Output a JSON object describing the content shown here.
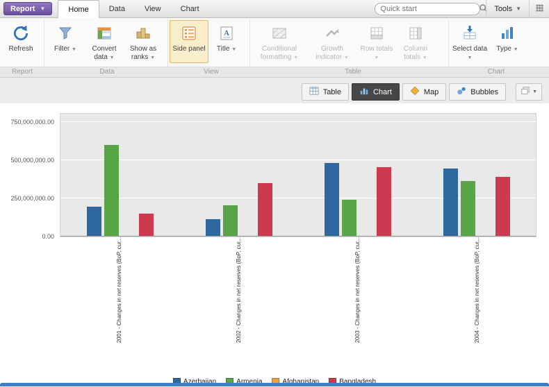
{
  "topbar": {
    "report_button": "Report",
    "tabs": [
      "Home",
      "Data",
      "View",
      "Chart"
    ],
    "active_tab": "Home",
    "quick_start": {
      "placeholder": "Quick start"
    },
    "tools": "Tools"
  },
  "ribbon": {
    "groups": [
      {
        "name": "Report",
        "buttons": [
          {
            "label": "Refresh",
            "icon": "refresh-icon"
          }
        ]
      },
      {
        "name": "Data",
        "buttons": [
          {
            "label": "Filter",
            "icon": "filter-icon",
            "dropdown": true
          },
          {
            "label": "Convert data",
            "icon": "convert-data-icon",
            "dropdown": true
          },
          {
            "label": "Show as ranks",
            "icon": "ranks-icon",
            "dropdown": true
          }
        ]
      },
      {
        "name": "View",
        "buttons": [
          {
            "label": "Side panel",
            "icon": "side-panel-icon",
            "selected": true
          },
          {
            "label": "Title",
            "icon": "title-icon",
            "dropdown": true
          }
        ]
      },
      {
        "name": "Table",
        "buttons": [
          {
            "label": "Conditional formatting",
            "icon": "conditional-formatting-icon",
            "disabled": true,
            "dropdown": true
          },
          {
            "label": "Growth indicator",
            "icon": "growth-indicator-icon",
            "disabled": true,
            "dropdown": true
          },
          {
            "label": "Row totals",
            "icon": "row-totals-icon",
            "disabled": true,
            "dropdown": true
          },
          {
            "label": "Column totals",
            "icon": "column-totals-icon",
            "disabled": true,
            "dropdown": true
          }
        ]
      },
      {
        "name": "Chart",
        "buttons": [
          {
            "label": "Select data",
            "icon": "select-data-icon",
            "dropdown": true
          },
          {
            "label": "Type",
            "icon": "type-icon",
            "dropdown": true
          }
        ]
      }
    ]
  },
  "view_switcher": {
    "buttons": [
      {
        "label": "Table",
        "icon": "table-view-icon"
      },
      {
        "label": "Chart",
        "icon": "chart-view-icon",
        "active": true
      },
      {
        "label": "Map",
        "icon": "map-view-icon"
      },
      {
        "label": "Bubbles",
        "icon": "bubbles-view-icon"
      }
    ]
  },
  "chart_data": {
    "type": "bar",
    "categories": [
      "2001 - Changes in net reserves (BoP, cur...",
      "2002 - Changes in net reserves (BoP, cur...",
      "2003 - Changes in net reserves (BoP, cur...",
      "2004 - Changes in net reserves (BoP, cur..."
    ],
    "series": [
      {
        "name": "Azerbaijan",
        "color": "#2e689e",
        "values": [
          195000000,
          115000000,
          480000000,
          445000000
        ]
      },
      {
        "name": "Armenia",
        "color": "#57a546",
        "values": [
          600000000,
          205000000,
          240000000,
          365000000
        ]
      },
      {
        "name": "Afghanistan",
        "color": "#f0a23c",
        "values": [
          0,
          0,
          0,
          0
        ]
      },
      {
        "name": "Bangladesh",
        "color": "#cd3a50",
        "values": [
          148000000,
          350000000,
          455000000,
          390000000
        ]
      }
    ],
    "ylim": [
      0,
      750000000
    ],
    "yticks": [
      {
        "value": 0,
        "label": "0.00"
      },
      {
        "value": 250000000,
        "label": "250,000,000.00"
      },
      {
        "value": 500000000,
        "label": "500,000,000.00"
      },
      {
        "value": 750000000,
        "label": "750,000,000.00"
      }
    ],
    "grid": true,
    "legend_position": "bottom"
  }
}
